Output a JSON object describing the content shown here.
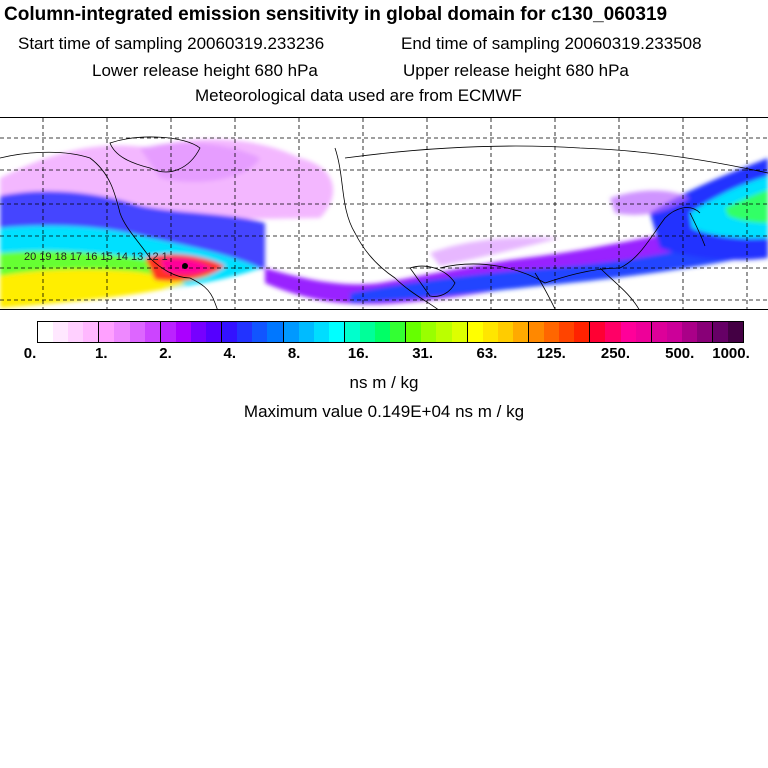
{
  "title": "Column-integrated emission sensitivity in global domain for c130_060319",
  "sampling": {
    "start": "Start time of sampling 20060319.233236",
    "end": "End time of sampling 20060319.233508"
  },
  "release": {
    "lower": "Lower release height  680 hPa",
    "upper": "Upper release height  680 hPa"
  },
  "meteo": "Meteorological data used are from ECMWF",
  "map": {
    "trajectory_labels": "20 19 18 17 16 15 14 13 12 1",
    "plume_colors": {
      "low": "#cc66ff",
      "mid_low": "#3333ff",
      "mid": "#00e0ff",
      "mid_high": "#66ff33",
      "high": "#ffee00",
      "very_high": "#ff3300",
      "max": "#ff0099"
    }
  },
  "colorbar": {
    "labels": [
      "0.",
      "1.",
      "2.",
      "4.",
      "8.",
      "16.",
      "31.",
      "63.",
      "125.",
      "250.",
      "500.",
      "1000."
    ],
    "colors": [
      "#ffffff",
      "#ffe8ff",
      "#ffd0ff",
      "#ffb8ff",
      "#ffa0ff",
      "#ee88ff",
      "#dd66ff",
      "#cc44ff",
      "#bb22ff",
      "#aa00ff",
      "#7700ff",
      "#5500ff",
      "#3311ff",
      "#2233ff",
      "#1155ff",
      "#0077ff",
      "#0099ff",
      "#00bbff",
      "#00ddff",
      "#00ffff",
      "#00ffcc",
      "#00ff99",
      "#00ff66",
      "#33ff33",
      "#66ff00",
      "#99ff00",
      "#bbff00",
      "#ddff00",
      "#ffff00",
      "#ffe600",
      "#ffcc00",
      "#ffaa00",
      "#ff8800",
      "#ff6600",
      "#ff4400",
      "#ff2200",
      "#ff0033",
      "#ff0066",
      "#ff0099",
      "#ee0099",
      "#dd0099",
      "#cc0099",
      "#aa0088",
      "#880077",
      "#660066",
      "#440044"
    ]
  },
  "units": "ns m / kg",
  "max_value": "Maximum value  0.149E+04 ns m / kg"
}
